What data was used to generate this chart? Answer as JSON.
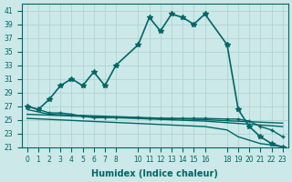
{
  "xlabel": "Humidex (Indice chaleur)",
  "bg_color": "#cce8e8",
  "grid_color": "#aad0d0",
  "line_color": "#006666",
  "xlim": [
    -0.5,
    23.5
  ],
  "ylim": [
    21,
    42
  ],
  "yticks": [
    21,
    23,
    25,
    27,
    29,
    31,
    33,
    35,
    37,
    39,
    41
  ],
  "xticks": [
    0,
    1,
    2,
    3,
    4,
    5,
    6,
    7,
    8,
    10,
    11,
    12,
    13,
    14,
    15,
    16,
    18,
    19,
    20,
    21,
    22,
    23
  ],
  "series": [
    {
      "x": [
        0,
        1,
        2,
        3,
        4,
        5,
        6,
        7,
        8,
        10,
        11,
        12,
        13,
        14,
        15,
        16,
        18,
        19,
        20,
        21,
        22,
        23
      ],
      "y": [
        27,
        26.5,
        28,
        30,
        31,
        30,
        32,
        30,
        33,
        36,
        40,
        38,
        40.5,
        40,
        39,
        40.5,
        36,
        26.5,
        24,
        22.5,
        21.5,
        21
      ],
      "color": "#006666",
      "lw": 1.2,
      "marker": "*",
      "ms": 4
    },
    {
      "x": [
        0,
        2,
        3,
        4,
        5,
        6,
        7,
        8,
        10,
        11,
        12,
        13,
        14,
        15,
        16,
        18,
        19,
        20,
        21,
        22,
        23
      ],
      "y": [
        27,
        26,
        26,
        25.8,
        25.5,
        25.3,
        25.3,
        25.3,
        25.3,
        25.2,
        25.2,
        25.2,
        25.2,
        25.2,
        25.2,
        25.1,
        25.1,
        24.8,
        24.0,
        23.5,
        22.5
      ],
      "color": "#006666",
      "lw": 1.0,
      "marker": "+",
      "ms": 3
    },
    {
      "x": [
        0,
        2,
        16,
        23
      ],
      "y": [
        26.5,
        25.8,
        25.0,
        24.5
      ],
      "color": "#006666",
      "lw": 1.0,
      "marker": null,
      "ms": 0
    },
    {
      "x": [
        0,
        16,
        23
      ],
      "y": [
        25.8,
        24.8,
        24.0
      ],
      "color": "#006666",
      "lw": 1.0,
      "marker": null,
      "ms": 0
    },
    {
      "x": [
        0,
        16,
        18,
        19,
        20,
        21,
        22,
        23
      ],
      "y": [
        25.2,
        24.0,
        23.5,
        22.5,
        22.0,
        21.5,
        21.3,
        21.0
      ],
      "color": "#006666",
      "lw": 1.0,
      "marker": null,
      "ms": 0
    }
  ]
}
